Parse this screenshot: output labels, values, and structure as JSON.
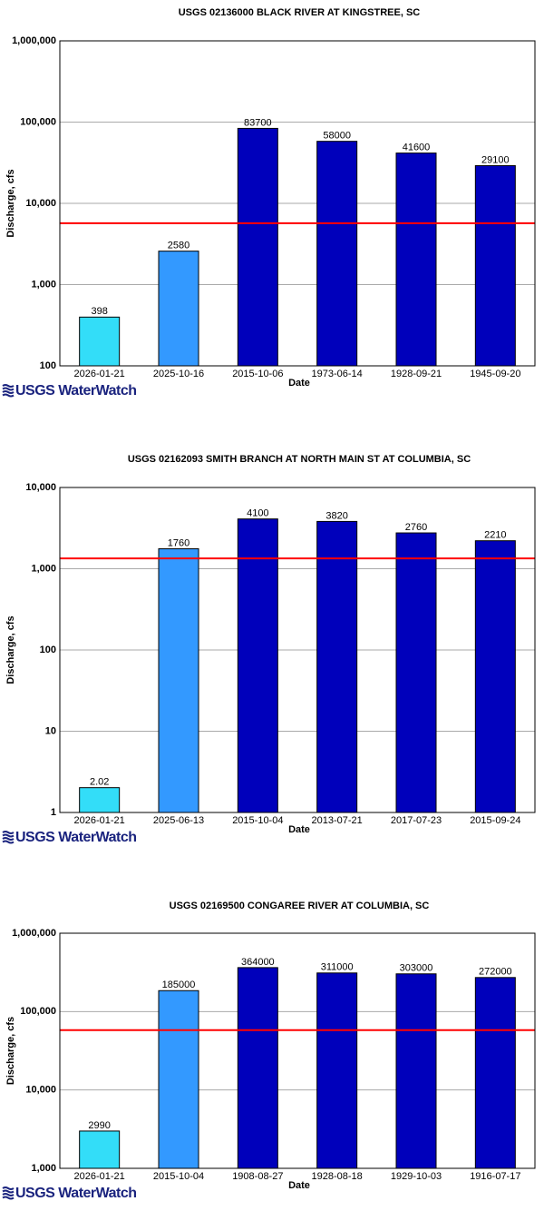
{
  "chart_data": [
    {
      "type": "bar",
      "title": "USGS 02136000 BLACK RIVER AT KINGSTREE, SC",
      "categories": [
        "2026-01-21",
        "2025-10-16",
        "2015-10-06",
        "1973-06-14",
        "1928-09-21",
        "1945-09-20"
      ],
      "values": [
        398,
        2580,
        83700,
        58000,
        41600,
        29100
      ],
      "colors": [
        "#33ddf8",
        "#3399ff",
        "#0000bb",
        "#0000bb",
        "#0000bb",
        "#0000bb"
      ],
      "ylabel": "Discharge, cfs",
      "xlabel": "Date",
      "log_scale": true,
      "grid": true,
      "ylim": [
        100,
        1000000
      ],
      "yticks": [
        100,
        {
          "value": 1000,
          "label": "1,000"
        },
        {
          "value": 10000,
          "label": "10,000"
        },
        {
          "value": 100000,
          "label": "100,000"
        },
        {
          "value": 1000000,
          "label": "1,000,000"
        }
      ],
      "reference_line": 5700,
      "reference_color": "#ff0000",
      "logo": "USGS WaterWatch"
    },
    {
      "type": "bar",
      "title": "USGS 02162093 SMITH BRANCH AT NORTH MAIN ST AT COLUMBIA, SC",
      "categories": [
        "2026-01-21",
        "2025-06-13",
        "2015-10-04",
        "2013-07-21",
        "2017-07-23",
        "2015-09-24"
      ],
      "values": [
        2.02,
        1760,
        4100,
        3820,
        2760,
        2210
      ],
      "colors": [
        "#33ddf8",
        "#3399ff",
        "#0000bb",
        "#0000bb",
        "#0000bb",
        "#0000bb"
      ],
      "ylabel": "Discharge, cfs",
      "xlabel": "Date",
      "log_scale": true,
      "grid": true,
      "ylim": [
        1,
        10000
      ],
      "yticks": [
        1,
        10,
        100,
        {
          "value": 1000,
          "label": "1,000"
        },
        {
          "value": 10000,
          "label": "10,000"
        }
      ],
      "reference_line": 1340,
      "reference_color": "#ff0000",
      "logo": "USGS WaterWatch"
    },
    {
      "type": "bar",
      "title": "USGS 02169500 CONGAREE RIVER AT COLUMBIA, SC",
      "categories": [
        "2026-01-21",
        "2015-10-04",
        "1908-08-27",
        "1928-08-18",
        "1929-10-03",
        "1916-07-17"
      ],
      "values": [
        2990,
        185000,
        364000,
        311000,
        303000,
        272000
      ],
      "colors": [
        "#33ddf8",
        "#3399ff",
        "#0000bb",
        "#0000bb",
        "#0000bb",
        "#0000bb"
      ],
      "ylabel": "Discharge, cfs",
      "xlabel": "Date",
      "log_scale": true,
      "grid": true,
      "ylim": [
        1000,
        1000000
      ],
      "yticks": [
        {
          "value": 1000,
          "label": "1,000"
        },
        {
          "value": 10000,
          "label": "10,000"
        },
        {
          "value": 100000,
          "label": "100,000"
        },
        {
          "value": 1000000,
          "label": "1,000,000"
        }
      ],
      "reference_line": 58000,
      "reference_color": "#ff0000",
      "logo": "USGS WaterWatch"
    }
  ]
}
